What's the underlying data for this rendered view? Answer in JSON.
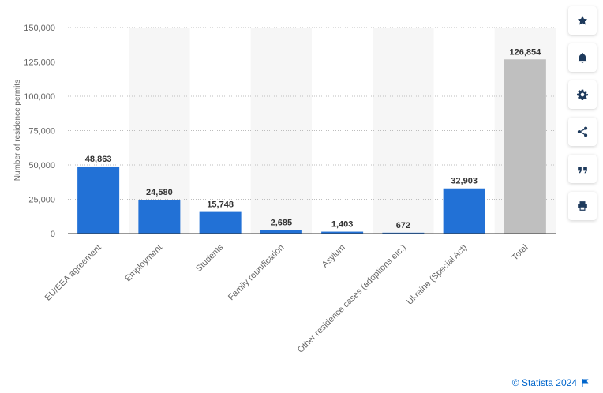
{
  "chart_data": {
    "type": "bar",
    "ylabel": "Number of residence permits",
    "ylim": [
      0,
      150000
    ],
    "yticks": [
      0,
      25000,
      50000,
      75000,
      100000,
      125000,
      150000
    ],
    "ytick_labels": [
      "0",
      "25,000",
      "50,000",
      "75,000",
      "100,000",
      "125,000",
      "150,000"
    ],
    "grid": true,
    "categories": [
      "EU/EEA agreement",
      "Employment",
      "Students",
      "Family reunification",
      "Asylum",
      "Other residence cases (adoptions etc.)",
      "Ukraine (Special Act)",
      "Total"
    ],
    "values": [
      48863,
      24580,
      15748,
      2685,
      1403,
      672,
      32903,
      126854
    ],
    "value_labels": [
      "48,863",
      "24,580",
      "15,748",
      "2,685",
      "1,403",
      "672",
      "32,903",
      "126,854"
    ],
    "colors": {
      "bar": "#2271d6",
      "total_bar": "#bfbfbf",
      "band": "#f6f6f6",
      "grid": "#bdbdbd",
      "axis": "#333333"
    }
  },
  "toolbar": {
    "buttons": [
      {
        "icon": "star-icon"
      },
      {
        "icon": "bell-icon"
      },
      {
        "icon": "gear-icon"
      },
      {
        "icon": "share-icon"
      },
      {
        "icon": "quote-icon"
      },
      {
        "icon": "print-icon"
      }
    ]
  },
  "credit": {
    "text": "© Statista 2024"
  }
}
